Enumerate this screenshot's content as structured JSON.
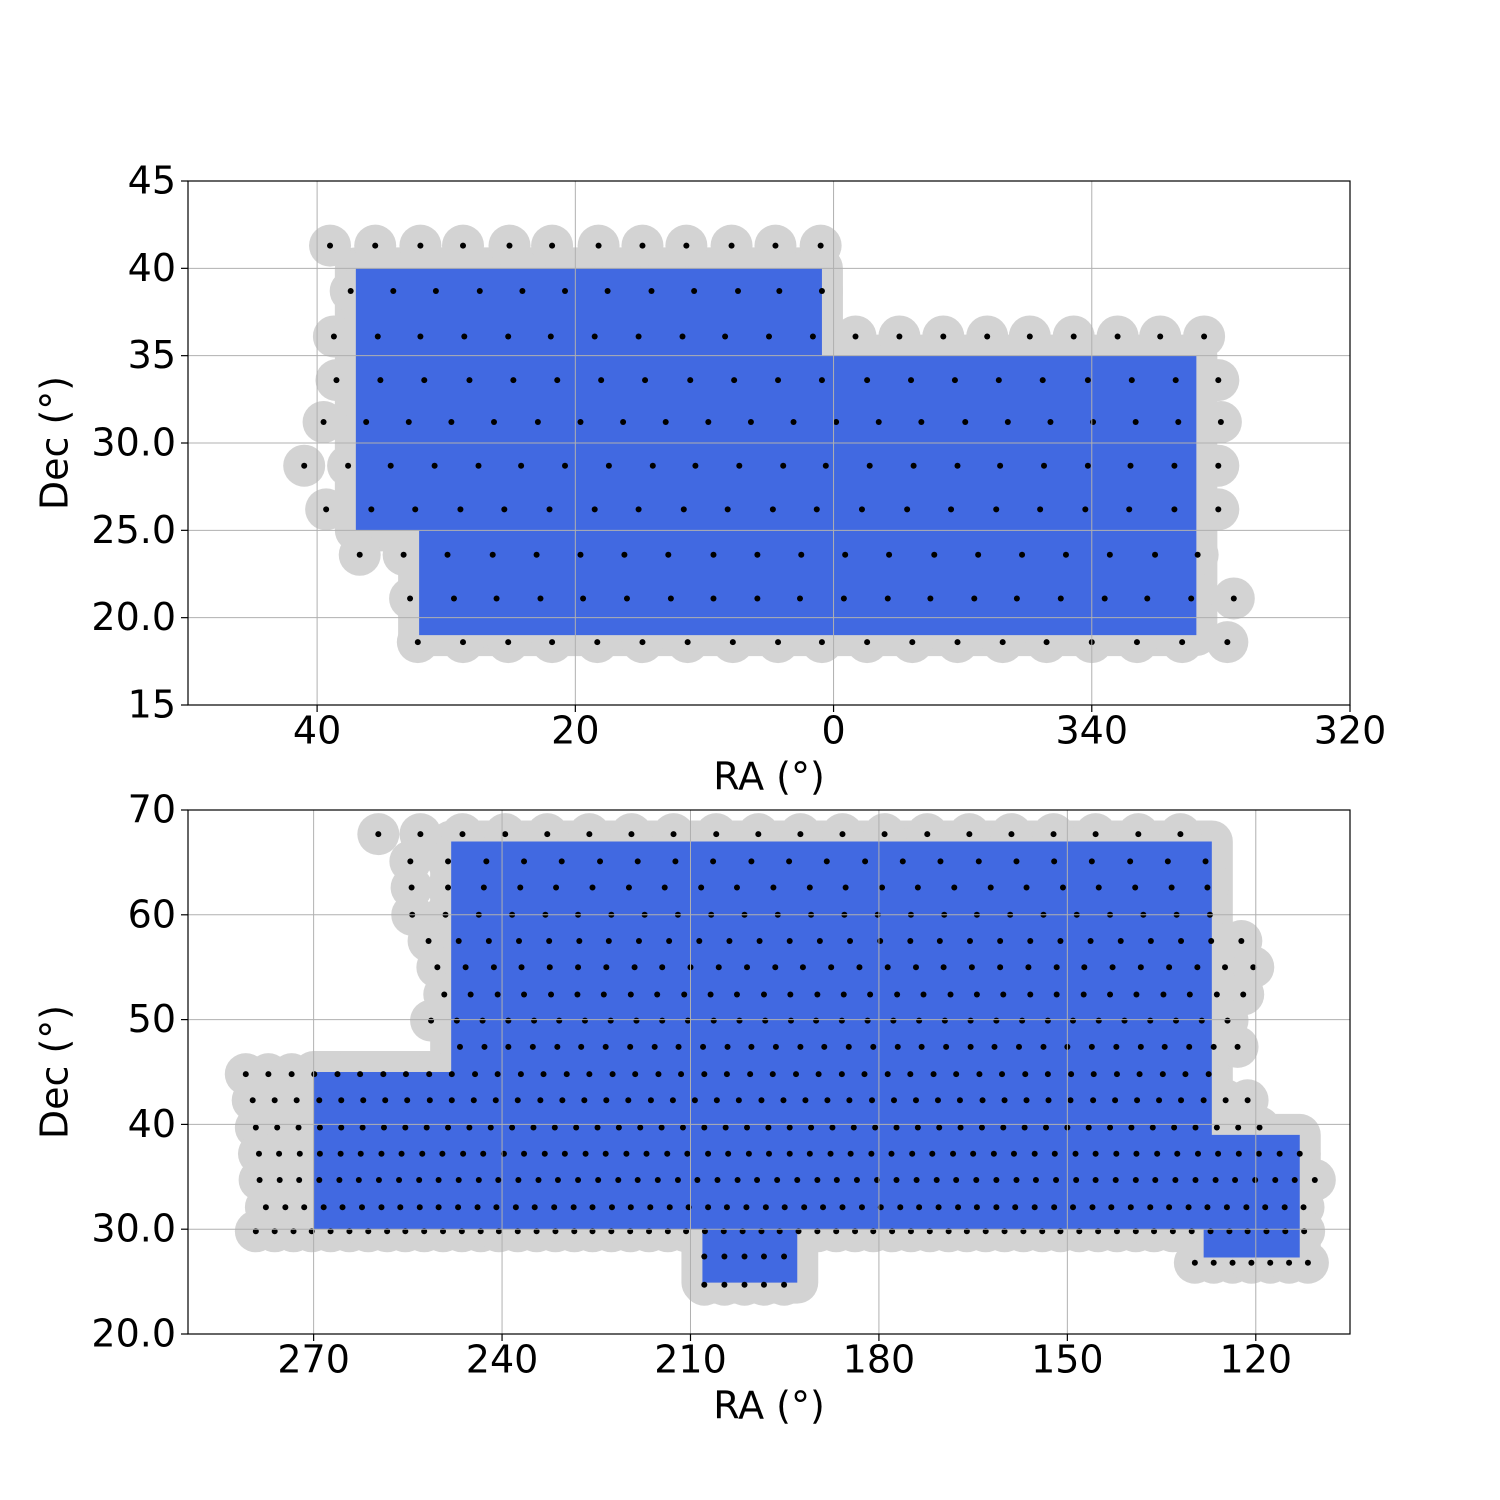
{
  "chart_data": [
    {
      "type": "sky-map",
      "xlabel": "RA (°)",
      "ylabel": "Dec (°)",
      "xlim": [
        50,
        320
      ],
      "ylim": [
        15,
        45
      ],
      "xticks": [
        40,
        20,
        0,
        340,
        320
      ],
      "yticks": [
        15,
        {
          "value": 20,
          "label": "20.0"
        },
        {
          "value": 25,
          "label": "25.0"
        },
        {
          "value": 30,
          "label": "30.0"
        },
        35,
        40,
        45
      ],
      "grid": true,
      "footprint_color": "#4169e1",
      "pointing_color": "#000000",
      "coverage_color": "#d3d3d3",
      "footprint": {
        "ra": [
          37.0,
          0.9,
          0.9,
          331.9,
          331.9,
          32.1,
          32.1,
          37.0
        ],
        "dec": [
          40,
          40,
          35,
          35,
          19,
          19,
          25,
          25
        ]
      },
      "pointings": [
        {
          "dec": 41.3,
          "ra": [
            39.0,
            35.5,
            32.0,
            28.7,
            25.1,
            21.8,
            18.2,
            14.8,
            11.4,
            7.9,
            4.5,
            1.0
          ]
        },
        {
          "dec": 38.7,
          "ra": [
            37.4,
            34.1,
            30.8,
            27.4,
            24.1,
            20.8,
            17.5,
            14.1,
            10.8,
            7.4,
            4.2,
            0.9
          ]
        },
        {
          "dec": 36.1,
          "ra": [
            38.7,
            35.3,
            32.0,
            28.6,
            25.2,
            21.9,
            18.5,
            15.1,
            11.7,
            8.4,
            5.0,
            1.6,
            358.3,
            354.9,
            351.5,
            348.1,
            344.8,
            341.4,
            338.0,
            334.7,
            331.3
          ]
        },
        {
          "dec": 33.6,
          "ra": [
            38.5,
            35.1,
            31.7,
            28.2,
            24.8,
            21.4,
            18.0,
            14.6,
            11.1,
            7.7,
            4.3,
            0.9,
            357.4,
            354.0,
            350.6,
            347.2,
            343.8,
            340.3,
            336.9,
            333.5,
            330.2
          ]
        },
        {
          "dec": 31.2,
          "ra": [
            39.5,
            36.2,
            32.9,
            29.6,
            26.3,
            22.9,
            19.6,
            16.3,
            13.0,
            9.7,
            6.4,
            3.1,
            359.8,
            356.5,
            353.2,
            349.8,
            346.5,
            343.2,
            339.9,
            336.6,
            333.3,
            330.0
          ]
        },
        {
          "dec": 28.7,
          "ra": [
            41.0,
            37.6,
            34.3,
            30.9,
            27.5,
            24.2,
            20.8,
            17.4,
            14.0,
            10.7,
            7.3,
            3.9,
            0.6,
            357.2,
            353.8,
            350.4,
            347.1,
            343.7,
            340.3,
            337.0,
            333.6,
            330.2
          ]
        },
        {
          "dec": 26.2,
          "ra": [
            39.3,
            35.8,
            32.4,
            28.9,
            25.5,
            22.0,
            18.5,
            15.1,
            11.6,
            8.2,
            4.7,
            1.3,
            357.8,
            354.3,
            350.9,
            347.4,
            344.0,
            340.5,
            337.1,
            333.6,
            330.2
          ]
        },
        {
          "dec": 23.6,
          "ra": [
            36.7,
            33.3,
            29.9,
            26.4,
            23.0,
            19.6,
            16.2,
            12.8,
            9.3,
            5.9,
            2.5,
            359.1,
            355.7,
            352.2,
            348.8,
            345.4,
            342.0,
            338.6,
            335.1,
            331.8
          ]
        },
        {
          "dec": 21.1,
          "ra": [
            32.8,
            29.4,
            26.1,
            22.7,
            19.4,
            16.0,
            12.6,
            9.3,
            5.9,
            2.6,
            359.2,
            355.8,
            352.5,
            349.1,
            345.8,
            342.4,
            339.0,
            335.7,
            332.3,
            329.0
          ]
        },
        {
          "dec": 18.6,
          "ra": [
            32.2,
            28.7,
            25.2,
            21.8,
            18.3,
            14.8,
            11.3,
            7.8,
            4.3,
            0.9,
            357.4,
            353.9,
            350.4,
            346.9,
            343.5,
            340.0,
            336.5,
            333.0,
            329.5
          ]
        }
      ]
    },
    {
      "type": "sky-map",
      "xlabel": "RA (°)",
      "ylabel": "Dec (°)",
      "xlim": [
        290,
        105
      ],
      "ylim": [
        20,
        70
      ],
      "xticks": [
        270,
        240,
        210,
        180,
        150,
        120
      ],
      "yticks": [
        {
          "value": 20,
          "label": "20.0"
        },
        {
          "value": 30,
          "label": "30.0"
        },
        40,
        50,
        60,
        70
      ],
      "grid": true,
      "footprint_color": "#4169e1",
      "pointing_color": "#000000",
      "coverage_color": "#d3d3d3",
      "footprint": {
        "ra": [
          270,
          248.1,
          248.1,
          127,
          127,
          113,
          113,
          128.3,
          128.3,
          193,
          193,
          208.1,
          208.1,
          270
        ],
        "dec": [
          45,
          45,
          67,
          67,
          39,
          39,
          27.3,
          27.3,
          30,
          30,
          24.9,
          24.9,
          30,
          30
        ]
      },
      "pointings": [
        {
          "dec": 67.7,
          "ra": [
            259.7,
            253.0,
            246.3,
            239.5,
            232.8,
            226.1,
            219.4,
            212.7,
            205.9,
            199.2,
            192.5,
            185.8,
            179.1,
            172.3,
            165.6,
            158.9,
            152.2,
            145.5,
            138.7,
            132.0
          ]
        },
        {
          "dec": 65.1,
          "ra": [
            254.6,
            248.6,
            242.5,
            236.5,
            230.5,
            224.4,
            218.4,
            212.4,
            206.4,
            200.3,
            194.3,
            188.3,
            182.2,
            176.2,
            170.2,
            164.1,
            158.1,
            152.1,
            146.1,
            140.0,
            134.0,
            128.0
          ]
        },
        {
          "dec": 62.6,
          "ra": [
            254.4,
            248.6,
            242.9,
            237.1,
            231.4,
            225.6,
            219.8,
            214.1,
            208.3,
            202.6,
            196.8,
            191.0,
            185.3,
            179.5,
            173.8,
            168.0,
            162.2,
            156.5,
            150.7,
            145.0,
            139.2,
            133.4,
            127.7
          ]
        },
        {
          "dec": 60.0,
          "ra": [
            254.3,
            249.0,
            243.7,
            238.4,
            233.1,
            227.9,
            222.6,
            217.3,
            212.0,
            206.7,
            201.4,
            196.1,
            190.8,
            185.5,
            180.2,
            174.9,
            169.6,
            164.4,
            159.1,
            153.8,
            148.5,
            143.2,
            137.9,
            132.6,
            127.3
          ]
        },
        {
          "dec": 57.5,
          "ra": [
            251.7,
            246.9,
            242.1,
            237.3,
            232.5,
            227.7,
            223.0,
            218.2,
            213.4,
            208.6,
            203.8,
            199.0,
            194.2,
            189.4,
            184.6,
            179.8,
            175.0,
            170.3,
            165.5,
            160.7,
            155.9,
            151.1,
            146.3,
            141.5,
            136.7,
            131.9,
            127.1,
            122.3
          ]
        },
        {
          "dec": 55.0,
          "ra": [
            250.3,
            245.8,
            241.3,
            236.9,
            232.4,
            227.9,
            223.4,
            218.9,
            214.5,
            210.0,
            205.5,
            201.0,
            196.5,
            192.1,
            187.6,
            183.1,
            178.6,
            174.1,
            169.7,
            165.2,
            160.7,
            156.2,
            151.7,
            147.3,
            142.8,
            138.3,
            133.8,
            129.3,
            124.9,
            120.4
          ]
        },
        {
          "dec": 52.4,
          "ra": [
            249.2,
            245.0,
            240.7,
            236.5,
            232.2,
            228.0,
            223.8,
            219.5,
            215.3,
            211.0,
            206.8,
            202.6,
            198.3,
            194.1,
            189.8,
            185.6,
            181.4,
            177.1,
            172.9,
            168.6,
            164.4,
            160.2,
            155.9,
            151.7,
            147.4,
            143.2,
            139.0,
            134.7,
            130.5,
            126.2,
            122.0
          ]
        },
        {
          "dec": 49.9,
          "ra": [
            251.3,
            247.2,
            243.1,
            239.0,
            234.9,
            230.9,
            226.8,
            222.7,
            218.6,
            214.5,
            210.4,
            206.3,
            202.2,
            198.1,
            194.0,
            190.0,
            185.9,
            181.8,
            177.7,
            173.6,
            169.5,
            165.4,
            161.3,
            157.2,
            153.1,
            149.1,
            145.0,
            140.9,
            136.8,
            132.7,
            128.6,
            124.5
          ]
        },
        {
          "dec": 47.4,
          "ra": [
            246.7,
            242.8,
            239.0,
            235.1,
            231.2,
            227.4,
            223.5,
            219.6,
            215.7,
            211.9,
            208.0,
            204.1,
            200.3,
            196.4,
            192.5,
            188.7,
            184.8,
            180.9,
            177.0,
            173.2,
            169.3,
            165.4,
            161.6,
            157.7,
            153.8,
            150.0,
            146.1,
            142.2,
            138.3,
            134.5,
            130.6,
            126.7,
            122.9
          ]
        },
        {
          "dec": 44.8,
          "ra": [
            280.8,
            277.2,
            273.5,
            269.9,
            266.2,
            262.6,
            258.9,
            255.3,
            251.6,
            248.0,
            244.3,
            240.7,
            237.0,
            233.4,
            229.7,
            226.1,
            222.4,
            218.8,
            215.1,
            211.5,
            207.8,
            204.2,
            200.5,
            196.9,
            193.2,
            189.6,
            185.9,
            182.3,
            178.6,
            175.0,
            171.3,
            167.7,
            164.0,
            160.4,
            156.7,
            153.1,
            149.4,
            145.8,
            142.1,
            138.5,
            134.8,
            131.2,
            127.5
          ]
        },
        {
          "dec": 42.3,
          "ra": [
            279.7,
            276.2,
            272.7,
            269.1,
            265.6,
            262.1,
            258.6,
            255.1,
            251.5,
            248.0,
            244.5,
            241.0,
            237.5,
            233.9,
            230.4,
            226.9,
            223.4,
            219.9,
            216.3,
            212.8,
            209.3,
            205.8,
            202.3,
            198.7,
            195.2,
            191.7,
            188.2,
            184.7,
            181.1,
            177.6,
            174.1,
            170.6,
            167.1,
            163.5,
            160.0,
            156.5,
            153.0,
            149.5,
            145.9,
            142.4,
            138.9,
            135.4,
            131.9,
            128.3,
            124.8,
            121.3
          ]
        },
        {
          "dec": 39.7,
          "ra": [
            279.2,
            275.8,
            272.4,
            269.0,
            265.6,
            262.2,
            258.8,
            255.4,
            252.0,
            248.6,
            245.2,
            241.8,
            238.4,
            235.0,
            231.6,
            228.2,
            224.8,
            221.4,
            218.0,
            214.6,
            211.2,
            207.8,
            204.4,
            201.0,
            197.6,
            194.2,
            190.8,
            187.4,
            184.0,
            180.6,
            177.2,
            173.8,
            170.4,
            167.0,
            163.6,
            160.2,
            156.8,
            153.4,
            150.0,
            146.6,
            143.2,
            139.8,
            136.4,
            133.0,
            129.6,
            126.2,
            122.8,
            119.4
          ]
        },
        {
          "dec": 37.2,
          "ra": [
            278.7,
            275.5,
            272.2,
            269.0,
            265.7,
            262.5,
            259.2,
            256.0,
            252.7,
            249.5,
            246.2,
            243.0,
            239.7,
            236.5,
            233.2,
            230.0,
            226.7,
            223.5,
            220.2,
            217.0,
            213.7,
            210.5,
            207.2,
            204.0,
            200.7,
            197.5,
            194.2,
            191.0,
            187.7,
            184.5,
            181.2,
            178.0,
            174.7,
            171.5,
            168.2,
            165.0,
            161.7,
            158.5,
            155.2,
            152.0,
            148.7,
            145.5,
            142.2,
            139.0,
            135.7,
            132.5,
            129.2,
            126.0,
            122.7,
            119.5,
            116.2,
            113.0
          ]
        },
        {
          "dec": 34.7,
          "ra": [
            278.6,
            275.4,
            272.3,
            269.1,
            265.9,
            262.8,
            259.6,
            256.4,
            253.2,
            250.1,
            246.9,
            243.7,
            240.6,
            237.4,
            234.2,
            231.1,
            227.9,
            224.7,
            221.5,
            218.4,
            215.2,
            212.0,
            208.9,
            205.7,
            202.5,
            199.4,
            196.2,
            193.0,
            189.8,
            186.7,
            183.5,
            180.3,
            177.2,
            174.0,
            170.8,
            167.7,
            164.5,
            161.3,
            158.1,
            155.0,
            151.8,
            148.6,
            145.5,
            142.3,
            139.1,
            136.0,
            132.8,
            129.6,
            126.4,
            123.3,
            120.1,
            116.9,
            113.8,
            110.6
          ]
        },
        {
          "dec": 32.1,
          "ra": [
            277.6,
            274.5,
            271.5,
            268.4,
            265.4,
            262.3,
            259.2,
            256.2,
            253.1,
            250.1,
            247.0,
            243.9,
            240.9,
            237.8,
            234.8,
            231.7,
            228.6,
            225.6,
            222.5,
            219.5,
            216.4,
            213.3,
            210.3,
            207.2,
            204.2,
            201.1,
            198.0,
            195.0,
            191.9,
            188.9,
            185.8,
            182.7,
            179.7,
            176.6,
            173.6,
            170.5,
            167.4,
            164.4,
            161.3,
            158.3,
            155.2,
            152.1,
            149.1,
            146.0,
            143.0,
            139.9,
            136.8,
            133.8,
            130.7,
            127.7,
            124.6,
            121.5,
            118.5,
            115.4,
            112.4
          ]
        },
        {
          "dec": 29.8,
          "ra": [
            279.2,
            276.2,
            273.2,
            270.3,
            267.3,
            264.3,
            261.3,
            258.3,
            255.4,
            252.4,
            249.4,
            246.4,
            243.4,
            240.5,
            237.5,
            234.5,
            231.5,
            228.5,
            225.6,
            222.6,
            219.6,
            216.6,
            213.6,
            210.7,
            207.7,
            204.7,
            201.7,
            198.7,
            195.8,
            192.8,
            189.8,
            186.8,
            183.8,
            180.9,
            177.9,
            174.9,
            171.9,
            168.9,
            166.0,
            163.0,
            160.0,
            157.0,
            154.0,
            151.1,
            148.1,
            145.1,
            142.1,
            139.1,
            136.2,
            133.2,
            130.2,
            127.2,
            124.2,
            121.3,
            118.3,
            115.3,
            112.3
          ]
        },
        {
          "dec": 27.4,
          "ra": [
            207.8,
            204.6,
            201.4,
            198.3,
            195.1
          ]
        },
        {
          "dec": 26.8,
          "ra": [
            129.7,
            126.7,
            123.7,
            120.7,
            117.7,
            114.7,
            111.7
          ]
        },
        {
          "dec": 24.7,
          "ra": [
            207.8,
            204.6,
            201.4,
            198.3,
            195.1
          ]
        }
      ]
    }
  ]
}
